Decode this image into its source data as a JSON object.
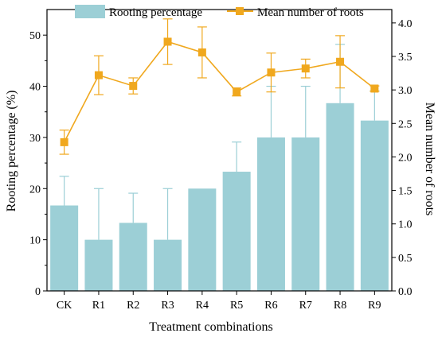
{
  "chart_data": {
    "type": "bar+line",
    "categories": [
      "CK",
      "R1",
      "R2",
      "R3",
      "R4",
      "R5",
      "R6",
      "R7",
      "R8",
      "R9"
    ],
    "xlabel": "Treatment combinations",
    "ylabel_left": "Rooting percentage (%)",
    "ylabel_right": "Mean number of roots",
    "ylim_left": [
      0,
      55
    ],
    "ylim_right": [
      0,
      4.2
    ],
    "yticks_left": [
      0,
      10,
      20,
      30,
      40,
      50
    ],
    "yticks_right": [
      "0.0",
      "0.5",
      "1.0",
      "1.5",
      "2.0",
      "2.5",
      "3.0",
      "3.5",
      "4.0"
    ],
    "legend_position": "top",
    "series": [
      {
        "name": "Rooting percentage",
        "type": "bar",
        "axis": "left",
        "color": "#9ccfd6",
        "values": [
          16.7,
          10.0,
          13.3,
          10.0,
          20.0,
          23.3,
          30.0,
          30.0,
          36.7,
          33.3
        ],
        "errors": [
          5.7,
          10.0,
          5.8,
          10.0,
          0.0,
          5.8,
          10.0,
          10.0,
          11.5,
          5.8
        ]
      },
      {
        "name": "Mean number of roots",
        "type": "line",
        "axis": "right",
        "color": "#f0a81e",
        "marker": "square",
        "values": [
          2.22,
          3.22,
          3.06,
          3.72,
          3.56,
          2.97,
          3.26,
          3.32,
          3.42,
          3.02
        ],
        "errors": [
          0.18,
          0.29,
          0.12,
          0.34,
          0.38,
          0.06,
          0.29,
          0.14,
          0.39,
          0.04
        ]
      }
    ]
  }
}
